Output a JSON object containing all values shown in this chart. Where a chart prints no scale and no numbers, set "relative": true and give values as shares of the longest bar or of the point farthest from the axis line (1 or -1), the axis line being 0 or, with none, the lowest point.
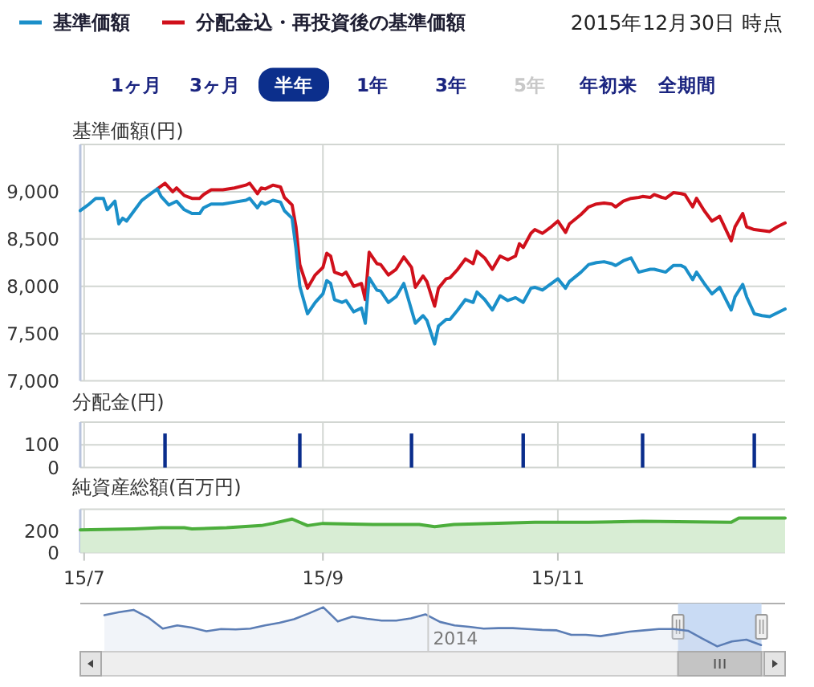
{
  "chart_data": [
    {
      "type": "line",
      "subtitle": "2015年12月30日 時点",
      "annotations": [
        "1ヶ月",
        "3ヶ月",
        "半年",
        "1年",
        "3年",
        "5年",
        "年初来",
        "全期間"
      ],
      "ylabel": "基準価額(円)",
      "xlim": [
        "2015-06-30",
        "2015-12-30"
      ],
      "xticks": [
        {
          "value": "2015-07-01",
          "label": "15/7"
        },
        {
          "value": "2015-09-01",
          "label": "15/9"
        },
        {
          "value": "2015-11-01",
          "label": "15/11"
        }
      ],
      "ylim": [
        7000,
        9500
      ],
      "yticks": [
        {
          "value": 7000,
          "label": "7,000"
        },
        {
          "value": 7500,
          "label": "7,500"
        },
        {
          "value": 8000,
          "label": "8,000"
        },
        {
          "value": 8500,
          "label": "8,500"
        },
        {
          "value": 9000,
          "label": "9,000"
        },
        {
          "value": 9500,
          "label": null
        }
      ],
      "grid": true,
      "legend": "top left",
      "tick_labels": "y",
      "series": [
        {
          "name": "基準価額",
          "color": "#1a8fc9",
          "x": [
            "2015-06-30",
            "2015-07-02",
            "2015-07-04",
            "2015-07-06",
            "2015-07-07",
            "2015-07-09",
            "2015-07-10",
            "2015-07-11",
            "2015-07-12",
            "2015-07-14",
            "2015-07-16",
            "2015-07-18",
            "2015-07-20",
            "2015-07-21",
            "2015-07-23",
            "2015-07-25",
            "2015-07-27",
            "2015-07-29",
            "2015-07-31",
            "2015-08-01",
            "2015-08-03",
            "2015-08-06",
            "2015-08-09",
            "2015-08-12",
            "2015-08-13",
            "2015-08-15",
            "2015-08-16",
            "2015-08-17",
            "2015-08-19",
            "2015-08-21",
            "2015-08-22",
            "2015-08-24",
            "2015-08-25",
            "2015-08-26",
            "2015-08-28",
            "2015-08-30",
            "2015-09-01",
            "2015-09-02",
            "2015-09-03",
            "2015-09-04",
            "2015-09-06",
            "2015-09-07",
            "2015-09-09",
            "2015-09-11",
            "2015-09-12",
            "2015-09-13",
            "2015-09-15",
            "2015-09-16",
            "2015-09-18",
            "2015-09-20",
            "2015-09-22",
            "2015-09-24",
            "2015-09-25",
            "2015-09-27",
            "2015-09-28",
            "2015-09-30",
            "2015-10-01",
            "2015-10-03",
            "2015-10-04",
            "2015-10-06",
            "2015-10-08",
            "2015-10-10",
            "2015-10-11",
            "2015-10-13",
            "2015-10-15",
            "2015-10-17",
            "2015-10-19",
            "2015-10-21",
            "2015-10-23",
            "2015-10-25",
            "2015-10-26",
            "2015-10-28",
            "2015-10-30",
            "2015-11-01",
            "2015-11-03",
            "2015-11-04",
            "2015-11-07",
            "2015-11-09",
            "2015-11-11",
            "2015-11-13",
            "2015-11-15",
            "2015-11-16",
            "2015-11-18",
            "2015-11-20",
            "2015-11-22",
            "2015-11-23",
            "2015-11-25",
            "2015-11-26",
            "2015-11-28",
            "2015-11-29",
            "2015-12-01",
            "2015-12-03",
            "2015-12-04",
            "2015-12-06",
            "2015-12-07",
            "2015-12-09",
            "2015-12-11",
            "2015-12-13",
            "2015-12-16",
            "2015-12-17",
            "2015-12-19",
            "2015-12-20",
            "2015-12-22",
            "2015-12-24",
            "2015-12-26",
            "2015-12-28",
            "2015-12-30"
          ],
          "values": [
            8800,
            8860,
            8930,
            8930,
            8810,
            8900,
            8660,
            8720,
            8690,
            8800,
            8910,
            8970,
            9030,
            8950,
            8860,
            8900,
            8810,
            8770,
            8770,
            8830,
            8870,
            8870,
            8890,
            8910,
            8930,
            8830,
            8890,
            8870,
            8910,
            8890,
            8800,
            8720,
            8400,
            8000,
            7710,
            7830,
            7920,
            8060,
            8030,
            7860,
            7830,
            7850,
            7730,
            7770,
            7610,
            8090,
            7960,
            7950,
            7830,
            7890,
            8030,
            7750,
            7610,
            7690,
            7640,
            7390,
            7580,
            7650,
            7650,
            7750,
            7860,
            7830,
            7940,
            7860,
            7750,
            7900,
            7850,
            7880,
            7830,
            7980,
            7990,
            7960,
            8020,
            8080,
            7980,
            8050,
            8150,
            8230,
            8250,
            8260,
            8240,
            8220,
            8270,
            8300,
            8150,
            8160,
            8180,
            8180,
            8160,
            8150,
            8220,
            8220,
            8200,
            8070,
            8150,
            8030,
            7920,
            7990,
            7750,
            7890,
            8020,
            7890,
            7710,
            7690,
            7680,
            7720,
            7760
          ]
        },
        {
          "name": "分配金込・再投資後の基準価額",
          "color": "#d0101b",
          "x": [
            "2015-07-20",
            "2015-07-22",
            "2015-07-24",
            "2015-07-25",
            "2015-07-27",
            "2015-07-29",
            "2015-07-31",
            "2015-08-01",
            "2015-08-03",
            "2015-08-06",
            "2015-08-09",
            "2015-08-12",
            "2015-08-13",
            "2015-08-15",
            "2015-08-16",
            "2015-08-17",
            "2015-08-19",
            "2015-08-21",
            "2015-08-22",
            "2015-08-24",
            "2015-08-25",
            "2015-08-26",
            "2015-08-28",
            "2015-08-30",
            "2015-09-01",
            "2015-09-02",
            "2015-09-03",
            "2015-09-04",
            "2015-09-06",
            "2015-09-07",
            "2015-09-09",
            "2015-09-11",
            "2015-09-12",
            "2015-09-13",
            "2015-09-15",
            "2015-09-16",
            "2015-09-18",
            "2015-09-20",
            "2015-09-22",
            "2015-09-24",
            "2015-09-25",
            "2015-09-27",
            "2015-09-28",
            "2015-09-30",
            "2015-10-01",
            "2015-10-03",
            "2015-10-04",
            "2015-10-06",
            "2015-10-08",
            "2015-10-10",
            "2015-10-11",
            "2015-10-13",
            "2015-10-15",
            "2015-10-17",
            "2015-10-19",
            "2015-10-21",
            "2015-10-22",
            "2015-10-23",
            "2015-10-25",
            "2015-10-26",
            "2015-10-28",
            "2015-10-30",
            "2015-11-01",
            "2015-11-03",
            "2015-11-04",
            "2015-11-07",
            "2015-11-09",
            "2015-11-11",
            "2015-11-13",
            "2015-11-15",
            "2015-11-16",
            "2015-11-18",
            "2015-11-20",
            "2015-11-22",
            "2015-11-23",
            "2015-11-25",
            "2015-11-26",
            "2015-11-28",
            "2015-11-29",
            "2015-12-01",
            "2015-12-03",
            "2015-12-04",
            "2015-12-06",
            "2015-12-07",
            "2015-12-09",
            "2015-12-11",
            "2015-12-13",
            "2015-12-16",
            "2015-12-17",
            "2015-12-19",
            "2015-12-20",
            "2015-12-22",
            "2015-12-24",
            "2015-12-26",
            "2015-12-28",
            "2015-12-30"
          ],
          "values": [
            9030,
            9090,
            9000,
            9040,
            8960,
            8930,
            8930,
            8970,
            9020,
            9020,
            9040,
            9070,
            9090,
            8980,
            9040,
            9030,
            9070,
            9050,
            8940,
            8860,
            8630,
            8230,
            7980,
            8120,
            8200,
            8350,
            8320,
            8150,
            8120,
            8150,
            8000,
            8030,
            7860,
            8360,
            8240,
            8230,
            8120,
            8180,
            8310,
            8200,
            7990,
            8110,
            8050,
            7790,
            7980,
            8080,
            8090,
            8180,
            8290,
            8240,
            8370,
            8300,
            8180,
            8320,
            8280,
            8320,
            8450,
            8410,
            8560,
            8600,
            8560,
            8620,
            8690,
            8570,
            8660,
            8760,
            8840,
            8870,
            8880,
            8870,
            8840,
            8900,
            8930,
            8940,
            8950,
            8940,
            8970,
            8940,
            8930,
            8990,
            8980,
            8970,
            8840,
            8930,
            8800,
            8690,
            8740,
            8480,
            8630,
            8770,
            8630,
            8600,
            8590,
            8580,
            8630,
            8670
          ]
        }
      ]
    },
    {
      "type": "bar",
      "ylabel": "分配金(円)",
      "x": [
        "2015-07-22",
        "2015-08-26",
        "2015-09-24",
        "2015-10-23",
        "2015-11-23",
        "2015-12-22"
      ],
      "values": [
        150,
        150,
        150,
        150,
        150,
        150
      ],
      "color": "#0a2d8c",
      "xlim": [
        "2015-06-30",
        "2015-12-30"
      ],
      "xticks": [
        {
          "value": "2015-07-01",
          "label": "15/7"
        },
        {
          "value": "2015-09-01",
          "label": "15/9"
        },
        {
          "value": "2015-11-01",
          "label": "15/11"
        }
      ],
      "ylim": [
        0,
        200
      ],
      "yticks": [
        0,
        100,
        {
          "value": 200,
          "label": null
        }
      ],
      "grid": true,
      "tick_labels": "y"
    },
    {
      "type": "area",
      "ylabel": "純資産総額(百万円)",
      "x": [
        "2015-06-30",
        "2015-07-14",
        "2015-07-21",
        "2015-07-27",
        "2015-07-29",
        "2015-08-07",
        "2015-08-16",
        "2015-08-19",
        "2015-08-24",
        "2015-08-28",
        "2015-09-01",
        "2015-09-14",
        "2015-09-26",
        "2015-09-30",
        "2015-10-05",
        "2015-10-26",
        "2015-11-09",
        "2015-11-23",
        "2015-12-16",
        "2015-12-18",
        "2015-12-30"
      ],
      "values": [
        210,
        220,
        230,
        230,
        220,
        230,
        250,
        270,
        310,
        250,
        270,
        260,
        260,
        240,
        260,
        280,
        280,
        290,
        280,
        320,
        320
      ],
      "color": "#4cae3c",
      "xlim": [
        "2015-06-30",
        "2015-12-30"
      ],
      "xticks": [
        {
          "value": "2015-07-01",
          "label": "15/7"
        },
        {
          "value": "2015-09-01",
          "label": "15/9"
        },
        {
          "value": "2015-11-01",
          "label": "15/11"
        }
      ],
      "ylim": [
        0,
        400
      ],
      "yticks": [
        0,
        200,
        {
          "value": 400,
          "label": null
        }
      ],
      "grid": true
    },
    {
      "type": "area",
      "relative": true,
      "annotations": [
        "2014"
      ],
      "categories": [
        null,
        null,
        null,
        null,
        null,
        null,
        null,
        null,
        null,
        null,
        null,
        null,
        null,
        null,
        null,
        null,
        null,
        null,
        null,
        null,
        null,
        null,
        null,
        null,
        null,
        null,
        null,
        null,
        null,
        null,
        null,
        null,
        null,
        null,
        null,
        null,
        null,
        null,
        null,
        null,
        null,
        null,
        null,
        null,
        null,
        null
      ],
      "values": [
        0.82,
        0.89,
        0.94,
        0.77,
        0.52,
        0.59,
        0.54,
        0.46,
        0.51,
        0.5,
        0.52,
        0.59,
        0.65,
        0.73,
        0.86,
        1,
        0.68,
        0.79,
        0.74,
        0.7,
        0.7,
        0.75,
        0.84,
        0.67,
        0.59,
        0.56,
        0.52,
        0.53,
        0.53,
        0.51,
        0.49,
        0.48,
        0.38,
        0.38,
        0.35,
        0.4,
        0.45,
        0.48,
        0.51,
        0.51,
        0.47,
        0.29,
        0.12,
        0.23,
        0.27,
        0.15
      ],
      "color": "#5b7db5"
    }
  ]
}
